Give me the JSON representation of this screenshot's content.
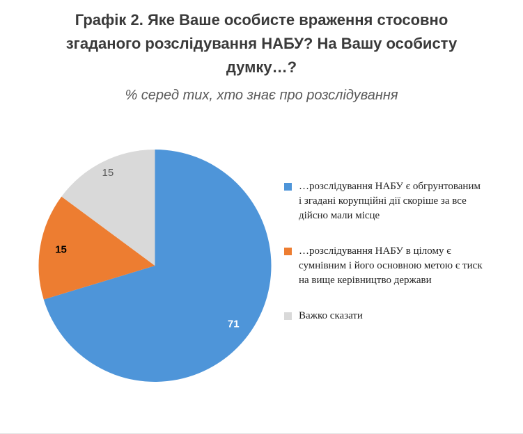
{
  "header": {
    "title_lines": [
      "Графік 2. Яке Ваше особисте враження стосовно",
      "згаданого розслідування НАБУ? На Вашу особисту",
      "думку…?"
    ],
    "subtitle": "% серед тих, хто знає про розслідування"
  },
  "chart_data": {
    "type": "pie",
    "title": "Графік 2. Яке Ваше особисте враження стосовно згаданого розслідування НАБУ? На Вашу особисту думку…?",
    "subtitle": "% серед тих, хто знає про розслідування",
    "values": [
      71,
      15,
      15
    ],
    "colors": [
      "#4E95D9",
      "#ED7D31",
      "#D9D9D9"
    ],
    "value_label_colors": [
      "#ffffff",
      "#000000",
      "#595959"
    ],
    "legend": [
      "…розслідування НАБУ є обгрунтованим і згадані корупційні дії скоріше за все дійсно мали місце",
      "…розслідування НАБУ в цілому є сумнівним і його основною метою є тиск  на вище керівництво держави",
      "Важко сказати"
    ],
    "legend_position": "right",
    "start_angle_deg": 0,
    "direction": "clockwise"
  }
}
